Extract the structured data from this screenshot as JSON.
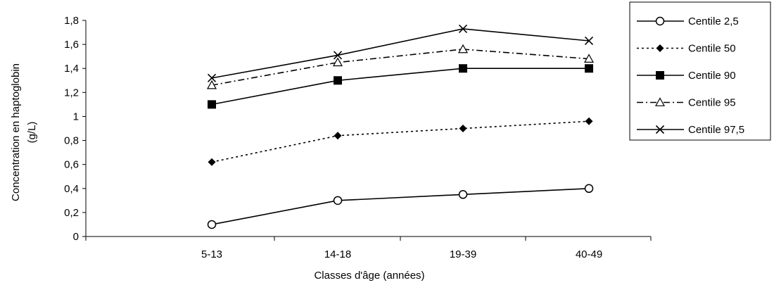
{
  "chart_data": {
    "type": "line",
    "title": "",
    "xlabel": "Classes d'âge (années)",
    "ylabel_line1": "Concentration en haptoglobin",
    "ylabel_line2": "(g/L)",
    "categories": [
      "5-13",
      "14-18",
      "19-39",
      "40-49"
    ],
    "ylim": [
      0,
      1.8
    ],
    "yticks": [
      0,
      0.2,
      0.4,
      0.6,
      0.8,
      1,
      1.2,
      1.4,
      1.6,
      1.8
    ],
    "ytick_labels": [
      "0",
      "0,2",
      "0,4",
      "0,6",
      "0,8",
      "1",
      "1,2",
      "1,4",
      "1,6",
      "1,8"
    ],
    "grid": false,
    "legend_position": "top-right",
    "series": [
      {
        "name": "Centile 2,5",
        "values": [
          0.1,
          0.3,
          0.35,
          0.4
        ],
        "marker": "circle-open",
        "dash": "solid",
        "color": "#000000"
      },
      {
        "name": "Centile 50",
        "values": [
          0.62,
          0.84,
          0.9,
          0.96
        ],
        "marker": "diamond-filled",
        "dash": "dotted",
        "color": "#000000"
      },
      {
        "name": "Centile 90",
        "values": [
          1.1,
          1.3,
          1.4,
          1.4
        ],
        "marker": "square-filled",
        "dash": "solid",
        "color": "#000000"
      },
      {
        "name": "Centile 95",
        "values": [
          1.26,
          1.45,
          1.56,
          1.48
        ],
        "marker": "triangle-open",
        "dash": "dashdot",
        "color": "#000000"
      },
      {
        "name": "Centile 97,5",
        "values": [
          1.32,
          1.51,
          1.73,
          1.63
        ],
        "marker": "x",
        "dash": "solid",
        "color": "#000000"
      }
    ]
  }
}
